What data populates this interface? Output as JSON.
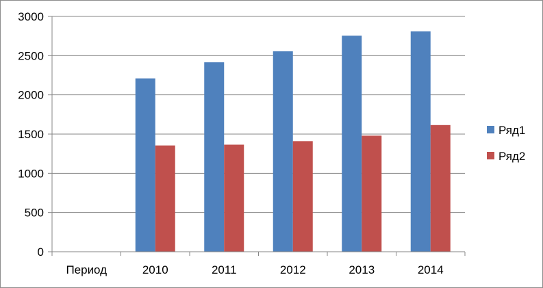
{
  "chart_data": {
    "type": "bar",
    "categories": [
      "Период",
      "2010",
      "2011",
      "2012",
      "2013",
      "2014"
    ],
    "series": [
      {
        "name": "Ряд1",
        "color": "#4f81bd",
        "values": [
          null,
          2210,
          2415,
          2555,
          2755,
          2810
        ]
      },
      {
        "name": "Ряд2",
        "color": "#c0504d",
        "values": [
          null,
          1355,
          1365,
          1410,
          1480,
          1615
        ]
      }
    ],
    "y_ticks": [
      "0",
      "500",
      "1000",
      "1500",
      "2000",
      "2500",
      "3000"
    ],
    "ylim": [
      0,
      3000
    ],
    "grid": true,
    "legend_position": "right"
  }
}
